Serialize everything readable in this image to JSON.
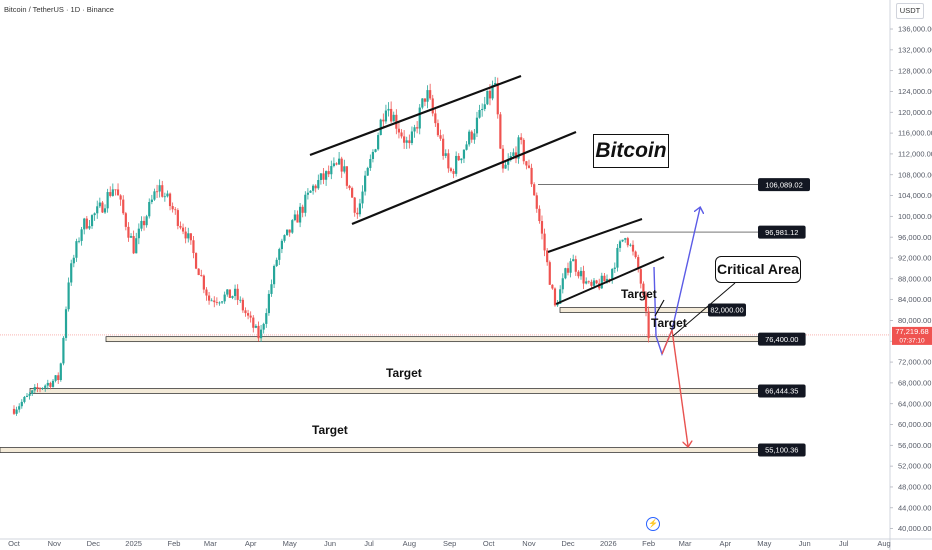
{
  "header": {
    "symbol": "Bitcoin / TetherUS · 1D · Binance",
    "currency": "USDT"
  },
  "chart_data": {
    "type": "candlestick",
    "title": "Bitcoin",
    "y_ticks": [
      40000,
      44000,
      48000,
      52000,
      56000,
      60000,
      64000,
      68000,
      72000,
      76000,
      80000,
      84000,
      88000,
      92000,
      96000,
      100000,
      104000,
      108000,
      112000,
      116000,
      120000,
      124000,
      128000,
      132000,
      136000
    ],
    "y_tick_labels": [
      "40,000.00",
      "44,000.00",
      "48,000.00",
      "52,000.00",
      "56,000.00",
      "60,000.00",
      "64,000.00",
      "68,000.00",
      "72,000.00",
      "76,000.00",
      "80,000.00",
      "84,000.00",
      "88,000.00",
      "92,000.00",
      "96,000.00",
      "100,000.00",
      "104,000.00",
      "108,000.00",
      "112,000.00",
      "116,000.00",
      "120,000.00",
      "124,000.00",
      "128,000.00",
      "132,000.00",
      "136,000.00"
    ],
    "x_ticks": [
      "Oct",
      "Nov",
      "Dec",
      "2025",
      "Feb",
      "Mar",
      "Apr",
      "May",
      "Jun",
      "Jul",
      "Aug",
      "Sep",
      "Oct",
      "Nov",
      "Dec",
      "2026",
      "Feb",
      "Mar",
      "Apr",
      "May",
      "Jun",
      "Jul",
      "Aug"
    ],
    "ylim": [
      38000,
      141000
    ],
    "price_path": [
      [
        "2024-10-01",
        63000
      ],
      [
        "2024-10-20",
        67000
      ],
      [
        "2024-11-05",
        69000
      ],
      [
        "2024-11-12",
        88000
      ],
      [
        "2024-11-22",
        98000
      ],
      [
        "2024-12-05",
        101000
      ],
      [
        "2024-12-17",
        106000
      ],
      [
        "2025-01-01",
        94000
      ],
      [
        "2025-01-20",
        106000
      ],
      [
        "2025-02-10",
        97000
      ],
      [
        "2025-02-28",
        84000
      ],
      [
        "2025-03-20",
        85000
      ],
      [
        "2025-04-08",
        76500
      ],
      [
        "2025-04-22",
        93000
      ],
      [
        "2025-05-20",
        106000
      ],
      [
        "2025-06-10",
        110000
      ],
      [
        "2025-06-22",
        100500
      ],
      [
        "2025-07-14",
        122000
      ],
      [
        "2025-08-01",
        113000
      ],
      [
        "2025-08-14",
        124000
      ],
      [
        "2025-09-01",
        108000
      ],
      [
        "2025-09-20",
        117000
      ],
      [
        "2025-10-06",
        125500
      ],
      [
        "2025-10-11",
        108000
      ],
      [
        "2025-10-25",
        114000
      ],
      [
        "2025-11-04",
        106000
      ],
      [
        "2025-11-21",
        82500
      ],
      [
        "2025-12-03",
        92000
      ],
      [
        "2025-12-18",
        86000
      ],
      [
        "2026-01-01",
        88000
      ],
      [
        "2026-01-14",
        97000
      ],
      [
        "2026-01-25",
        89000
      ],
      [
        "2026-02-01",
        77220
      ]
    ],
    "last_price": 77219.68,
    "last_price_label": "77,219.68",
    "countdown": "07:37:10",
    "levels": [
      {
        "value": 106089.02,
        "label": "106,089.02"
      },
      {
        "value": 96981.12,
        "label": "96,981.12"
      },
      {
        "value": 82000.0,
        "label": "82,000.00"
      },
      {
        "value": 76400.0,
        "label": "76,400.00"
      },
      {
        "value": 66444.35,
        "label": "66,444.35"
      },
      {
        "value": 55100.36,
        "label": "55,100.36"
      }
    ],
    "annotations": {
      "targets": [
        "Target",
        "Target",
        "Target",
        "Target"
      ],
      "critical": "Critical Area",
      "event_marker": "⚡"
    },
    "colors": {
      "up": "#26a69a",
      "down": "#ef5350",
      "bull_arrow": "#5b5be6",
      "bear_arrow": "#e8524f",
      "zone_fill": "#f3ead8",
      "line": "#111111"
    },
    "grid": false
  }
}
